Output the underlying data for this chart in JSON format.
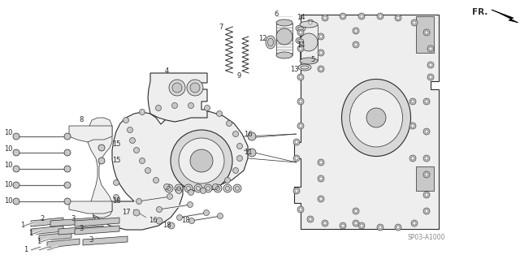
{
  "bg_color": "#ffffff",
  "line_color": "#2a2a2a",
  "watermark": "SP03-A1000",
  "fig_width": 6.4,
  "fig_height": 3.19,
  "dpi": 100,
  "lw_thin": 0.5,
  "lw_med": 0.8,
  "lw_thick": 1.1,
  "font_size": 6.0,
  "gray_body": "#d8d8d8",
  "gray_light": "#eeeeee",
  "gray_dark": "#b0b0b0",
  "gray_mid": "#c8c8c8"
}
